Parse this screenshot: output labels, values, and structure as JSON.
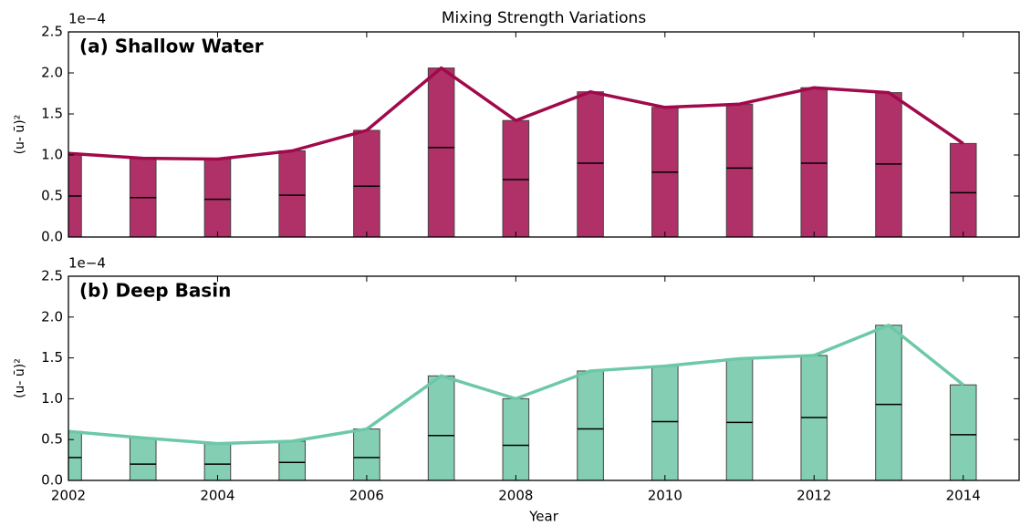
{
  "chart_data": [
    {
      "type": "bar",
      "title": "Mixing Strength Variations",
      "panel_label": "(a) Shallow Water",
      "ylabel": "(u- ū)²",
      "offset_text": "1e−4",
      "x": [
        2002,
        2003,
        2004,
        2005,
        2006,
        2007,
        2008,
        2009,
        2010,
        2011,
        2012,
        2013,
        2014
      ],
      "values": [
        1.02,
        0.96,
        0.95,
        1.05,
        1.3,
        2.06,
        1.42,
        1.77,
        1.58,
        1.62,
        1.82,
        1.76,
        1.14
      ],
      "medians": [
        0.5,
        0.48,
        0.46,
        0.51,
        0.62,
        1.09,
        0.7,
        0.9,
        0.79,
        0.84,
        0.9,
        0.89,
        0.54
      ],
      "color": "#b03068",
      "line_color": "#a00a4a",
      "xlim": [
        2002,
        2014.75
      ],
      "xticks": [
        2002,
        2004,
        2006,
        2008,
        2010,
        2012,
        2014
      ],
      "ylim": [
        0,
        2.5
      ],
      "yticks": [
        {
          "value": 0,
          "label": "0.0"
        },
        {
          "value": 0.5,
          "label": "0.5"
        },
        {
          "value": 1,
          "label": "1.0"
        },
        {
          "value": 1.5,
          "label": "1.5"
        },
        {
          "value": 2,
          "label": "2.0"
        },
        {
          "value": 2.5,
          "label": "2.5"
        }
      ]
    },
    {
      "type": "bar",
      "panel_label": "(b) Deep Basin",
      "ylabel": "(u- ū)²",
      "offset_text": "1e−4",
      "xlabel": "Year",
      "x": [
        2002,
        2003,
        2004,
        2005,
        2006,
        2007,
        2008,
        2009,
        2010,
        2011,
        2012,
        2013,
        2014
      ],
      "values": [
        0.6,
        0.52,
        0.45,
        0.48,
        0.63,
        1.28,
        1.0,
        1.34,
        1.4,
        1.49,
        1.53,
        1.9,
        1.17
      ],
      "medians": [
        0.28,
        0.2,
        0.2,
        0.22,
        0.28,
        0.55,
        0.43,
        0.63,
        0.72,
        0.71,
        0.77,
        0.93,
        0.56
      ],
      "color": "#84cfb4",
      "line_color": "#6cc9a8",
      "xlim": [
        2002,
        2014.75
      ],
      "xticks": [
        2002,
        2004,
        2006,
        2008,
        2010,
        2012,
        2014
      ],
      "show_xticklabels": true,
      "ylim": [
        0,
        2.5
      ],
      "yticks": [
        {
          "value": 0,
          "label": "0.0"
        },
        {
          "value": 0.5,
          "label": "0.5"
        },
        {
          "value": 1,
          "label": "1.0"
        },
        {
          "value": 1.5,
          "label": "1.5"
        },
        {
          "value": 2,
          "label": "2.0"
        },
        {
          "value": 2.5,
          "label": "2.5"
        }
      ]
    }
  ]
}
